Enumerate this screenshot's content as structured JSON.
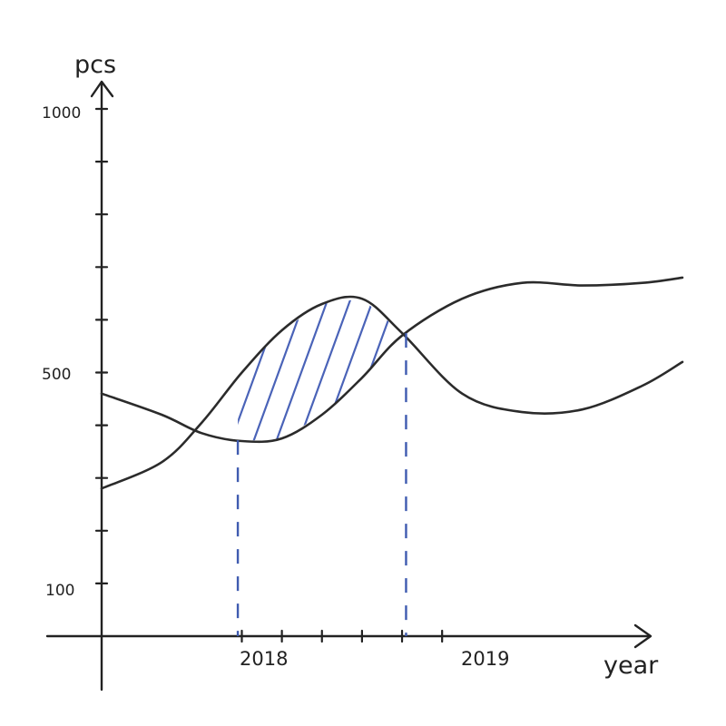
{
  "chart_data": {
    "type": "line",
    "style": "hand-drawn",
    "ylabel": "pcs",
    "xlabel": "year",
    "y_tick_labels": [
      "1000",
      "500",
      "100"
    ],
    "x_tick_labels": [
      "2018",
      "2019"
    ],
    "y_range": [
      0,
      1000
    ],
    "x_range": [
      2017.0,
      2019.9
    ],
    "grid": false,
    "series": [
      {
        "color": "#2b2b2b",
        "x": [
          2017.0,
          2017.3,
          2017.5,
          2017.7,
          2017.9,
          2018.1,
          2018.3,
          2018.5,
          2018.8,
          2019.1,
          2019.4,
          2019.7,
          2019.9
        ],
        "y": [
          280,
          330,
          405,
          500,
          580,
          630,
          640,
          575,
          460,
          425,
          430,
          475,
          520
        ]
      },
      {
        "color": "#2b2b2b",
        "x": [
          2017.0,
          2017.3,
          2017.5,
          2017.7,
          2017.9,
          2018.1,
          2018.3,
          2018.5,
          2018.8,
          2019.1,
          2019.4,
          2019.7,
          2019.9
        ],
        "y": [
          460,
          420,
          385,
          370,
          375,
          420,
          490,
          570,
          640,
          670,
          665,
          670,
          680
        ]
      }
    ],
    "annotations": {
      "shaded_region": {
        "x_from": 2017.68,
        "x_to": 2018.52,
        "fill": "hatched",
        "color": "#4a63b8"
      },
      "dashed_droplines_x": [
        2017.68,
        2018.52
      ],
      "dropline_color": "#3f5bb0"
    }
  }
}
